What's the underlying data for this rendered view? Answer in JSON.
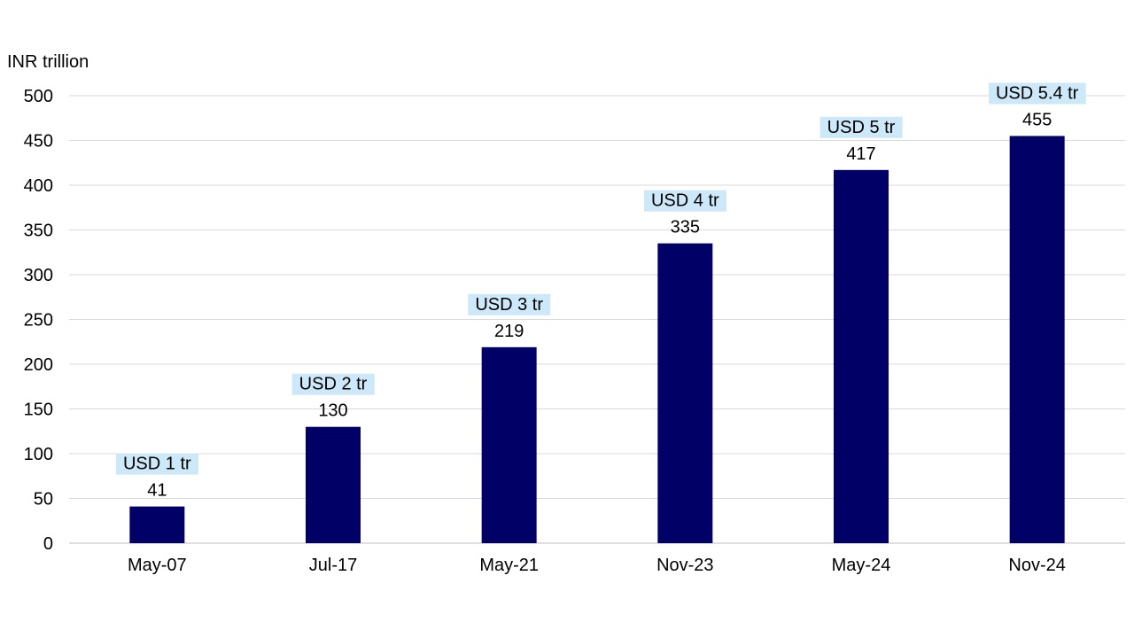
{
  "chart_data": {
    "type": "bar",
    "title": "",
    "xlabel": "",
    "ylabel": "INR trillion",
    "categories": [
      "May-07",
      "Jul-17",
      "May-21",
      "Nov-23",
      "May-24",
      "Nov-24"
    ],
    "values": [
      41,
      130,
      219,
      335,
      417,
      455
    ],
    "annotations": [
      "USD 1 tr",
      "USD 2 tr",
      "USD 3 tr",
      "USD 4 tr",
      "USD 5 tr",
      "USD 5.4 tr"
    ],
    "ylim": [
      0,
      500
    ],
    "yticks": [
      0,
      50,
      100,
      150,
      200,
      250,
      300,
      350,
      400,
      450,
      500
    ],
    "grid": true,
    "legend": "none",
    "colors": {
      "bar": "#000066",
      "annotation_bg": "#cde8f8",
      "grid": "#d9d9d9",
      "axis": "#bfbfbf"
    }
  }
}
